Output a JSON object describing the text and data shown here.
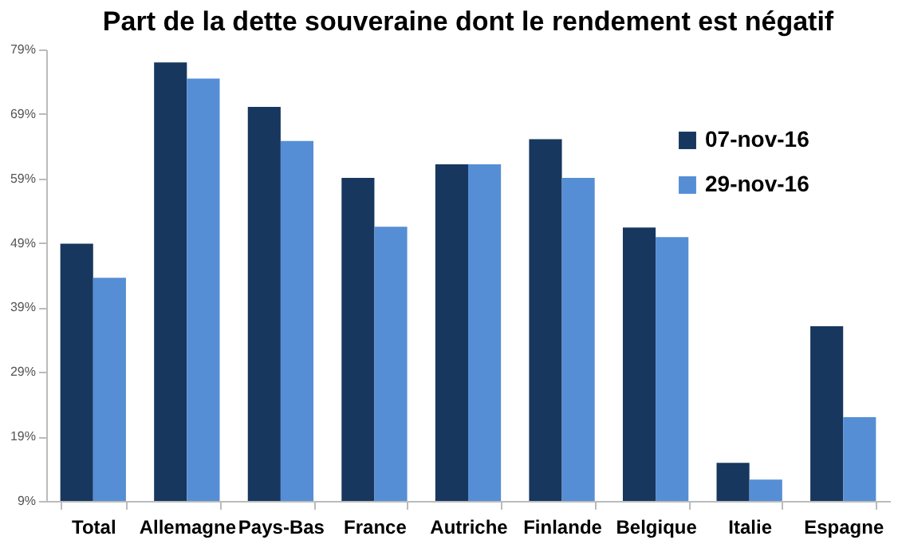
{
  "chart_data": {
    "type": "bar",
    "title": "Part de la dette souveraine dont le rendement est négatif",
    "categories": [
      "Total",
      "Allemagne",
      "Pays-Bas",
      "France",
      "Autriche",
      "Finlande",
      "Belgique",
      "Italie",
      "Espagne"
    ],
    "series": [
      {
        "name": "07-nov-16",
        "color": "#17375e",
        "values": [
          48.9,
          77,
          70.1,
          59.1,
          61.2,
          65.1,
          51.4,
          14.9,
          36.1
        ]
      },
      {
        "name": "29-nov-16",
        "color": "#558ed5",
        "values": [
          43.6,
          74.5,
          64.8,
          51.5,
          61.2,
          59.1,
          49.9,
          12.3,
          22
        ]
      }
    ],
    "ylim": [
      9,
      79
    ],
    "yticks": [
      {
        "value": 9,
        "label": "9%"
      },
      {
        "value": 19,
        "label": "19%"
      },
      {
        "value": 29,
        "label": "29%"
      },
      {
        "value": 39,
        "label": "39%"
      },
      {
        "value": 49,
        "label": "49%"
      },
      {
        "value": 59,
        "label": "59%"
      },
      {
        "value": 69,
        "label": "69%"
      },
      {
        "value": 79,
        "label": "79%"
      }
    ],
    "grid": false,
    "legend": "top right"
  }
}
